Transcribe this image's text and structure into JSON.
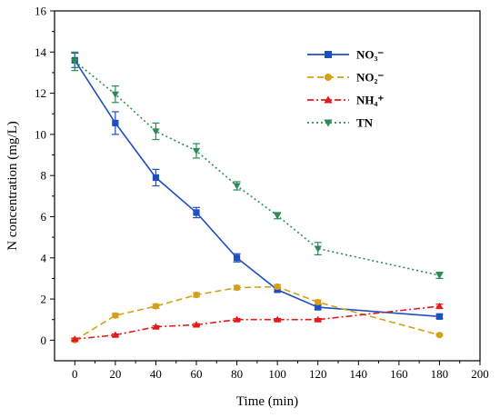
{
  "chart_data": {
    "type": "line",
    "title": "",
    "xlabel": "Time (min)",
    "ylabel": "N concentration (mg/L)",
    "xlim": [
      -10,
      200
    ],
    "ylim": [
      -1,
      16
    ],
    "xticks": [
      0,
      20,
      40,
      60,
      80,
      100,
      120,
      140,
      160,
      180,
      200
    ],
    "yticks": [
      0,
      2,
      4,
      6,
      8,
      10,
      12,
      14,
      16
    ],
    "grid": false,
    "legend_position": "top-right",
    "series": [
      {
        "name": "NO₃⁻",
        "color": "#1f4fbf",
        "marker": "square",
        "line_style": "solid",
        "x": [
          0,
          20,
          40,
          60,
          80,
          100,
          120,
          180
        ],
        "y": [
          13.6,
          10.55,
          7.9,
          6.2,
          4.0,
          2.45,
          1.6,
          1.15
        ],
        "err": [
          0.35,
          0.55,
          0.4,
          0.25,
          0.2,
          0.1,
          0.1,
          0.1
        ]
      },
      {
        "name": "NO₂⁻",
        "color": "#d4a017",
        "marker": "circle",
        "line_style": "dashed",
        "x": [
          0,
          20,
          40,
          60,
          80,
          100,
          120,
          180
        ],
        "y": [
          0.0,
          1.2,
          1.65,
          2.2,
          2.55,
          2.6,
          1.85,
          0.25
        ],
        "err": [
          0.05,
          0.1,
          0.1,
          0.1,
          0.1,
          0.1,
          0.1,
          0.05
        ]
      },
      {
        "name": "NH₄⁺",
        "color": "#e31a1c",
        "marker": "triangle-up",
        "line_style": "dash-dot",
        "x": [
          0,
          20,
          40,
          60,
          80,
          100,
          120,
          180
        ],
        "y": [
          0.05,
          0.25,
          0.65,
          0.75,
          1.0,
          1.0,
          1.0,
          1.65
        ],
        "err": [
          0.05,
          0.05,
          0.05,
          0.05,
          0.05,
          0.05,
          0.05,
          0.1
        ]
      },
      {
        "name": "TN",
        "color": "#2e8b57",
        "marker": "triangle-down",
        "line_style": "dotted",
        "x": [
          0,
          20,
          40,
          60,
          80,
          100,
          120,
          180
        ],
        "y": [
          13.55,
          11.95,
          10.15,
          9.2,
          7.5,
          6.05,
          4.45,
          3.15
        ],
        "err": [
          0.45,
          0.4,
          0.4,
          0.35,
          0.2,
          0.15,
          0.3,
          0.15
        ]
      }
    ]
  }
}
